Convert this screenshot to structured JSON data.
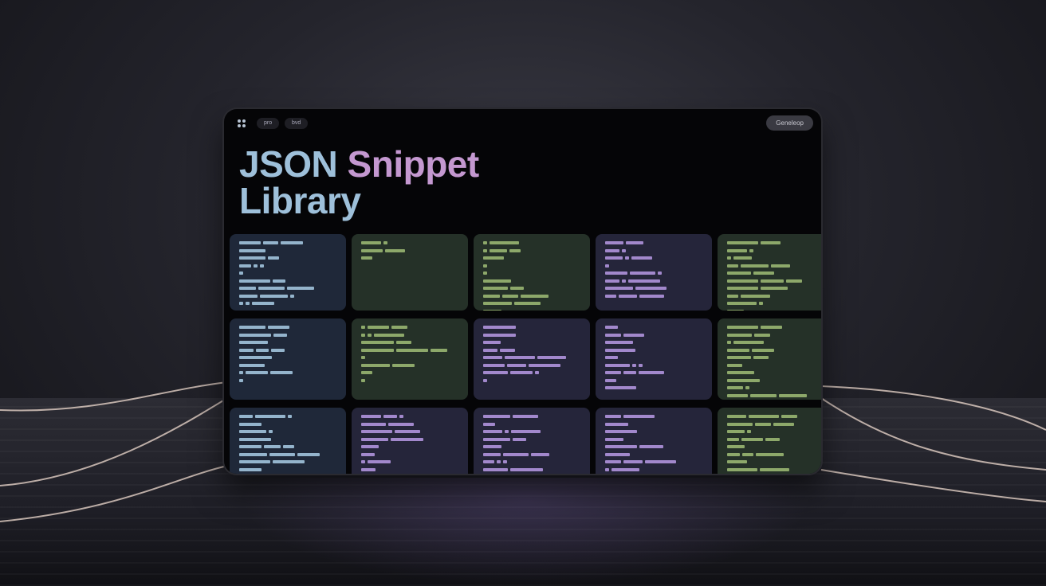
{
  "topbar": {
    "apps_icon": "grid-dots-icon",
    "chips": [
      "pro",
      "bvd"
    ],
    "cta_label": "Geneleop"
  },
  "title": {
    "part1": "JSON",
    "part2": "Snippet",
    "line2": "Library"
  },
  "colors": {
    "blue_text": "#9ec0da",
    "purple_text": "#c498d0",
    "blue_bar": "#94b4cc",
    "green_bar": "#8da86a",
    "purple_bar": "#a288cc"
  },
  "cards": [
    "blue",
    "green",
    "green",
    "purple",
    "green",
    "blue",
    "green",
    "purple",
    "purple",
    "green",
    "blue",
    "purple",
    "purple",
    "purple",
    "green"
  ]
}
